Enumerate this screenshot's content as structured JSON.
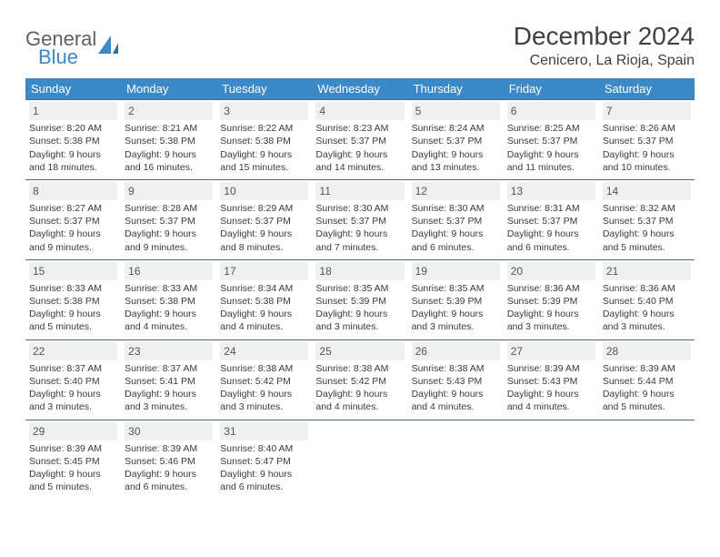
{
  "brand": {
    "line1": "General",
    "line2": "Blue"
  },
  "title": "December 2024",
  "location": "Cenicero, La Rioja, Spain",
  "dow": [
    "Sunday",
    "Monday",
    "Tuesday",
    "Wednesday",
    "Thursday",
    "Friday",
    "Saturday"
  ],
  "colors": {
    "header_bg": "#3b89c7",
    "header_text": "#ffffff",
    "week_border": "#3b6fa0",
    "daynum_bg": "#eef0f1",
    "text": "#404040",
    "brand_blue": "#3b89c7",
    "brand_gray": "#606060"
  },
  "label": {
    "sunrise": "Sunrise:",
    "sunset": "Sunset:",
    "daylight": "Daylight:"
  },
  "weeks": [
    [
      {
        "n": 1,
        "sr": "8:20 AM",
        "ss": "5:38 PM",
        "dl": "9 hours and 18 minutes."
      },
      {
        "n": 2,
        "sr": "8:21 AM",
        "ss": "5:38 PM",
        "dl": "9 hours and 16 minutes."
      },
      {
        "n": 3,
        "sr": "8:22 AM",
        "ss": "5:38 PM",
        "dl": "9 hours and 15 minutes."
      },
      {
        "n": 4,
        "sr": "8:23 AM",
        "ss": "5:37 PM",
        "dl": "9 hours and 14 minutes."
      },
      {
        "n": 5,
        "sr": "8:24 AM",
        "ss": "5:37 PM",
        "dl": "9 hours and 13 minutes."
      },
      {
        "n": 6,
        "sr": "8:25 AM",
        "ss": "5:37 PM",
        "dl": "9 hours and 11 minutes."
      },
      {
        "n": 7,
        "sr": "8:26 AM",
        "ss": "5:37 PM",
        "dl": "9 hours and 10 minutes."
      }
    ],
    [
      {
        "n": 8,
        "sr": "8:27 AM",
        "ss": "5:37 PM",
        "dl": "9 hours and 9 minutes."
      },
      {
        "n": 9,
        "sr": "8:28 AM",
        "ss": "5:37 PM",
        "dl": "9 hours and 9 minutes."
      },
      {
        "n": 10,
        "sr": "8:29 AM",
        "ss": "5:37 PM",
        "dl": "9 hours and 8 minutes."
      },
      {
        "n": 11,
        "sr": "8:30 AM",
        "ss": "5:37 PM",
        "dl": "9 hours and 7 minutes."
      },
      {
        "n": 12,
        "sr": "8:30 AM",
        "ss": "5:37 PM",
        "dl": "9 hours and 6 minutes."
      },
      {
        "n": 13,
        "sr": "8:31 AM",
        "ss": "5:37 PM",
        "dl": "9 hours and 6 minutes."
      },
      {
        "n": 14,
        "sr": "8:32 AM",
        "ss": "5:37 PM",
        "dl": "9 hours and 5 minutes."
      }
    ],
    [
      {
        "n": 15,
        "sr": "8:33 AM",
        "ss": "5:38 PM",
        "dl": "9 hours and 5 minutes."
      },
      {
        "n": 16,
        "sr": "8:33 AM",
        "ss": "5:38 PM",
        "dl": "9 hours and 4 minutes."
      },
      {
        "n": 17,
        "sr": "8:34 AM",
        "ss": "5:38 PM",
        "dl": "9 hours and 4 minutes."
      },
      {
        "n": 18,
        "sr": "8:35 AM",
        "ss": "5:39 PM",
        "dl": "9 hours and 3 minutes."
      },
      {
        "n": 19,
        "sr": "8:35 AM",
        "ss": "5:39 PM",
        "dl": "9 hours and 3 minutes."
      },
      {
        "n": 20,
        "sr": "8:36 AM",
        "ss": "5:39 PM",
        "dl": "9 hours and 3 minutes."
      },
      {
        "n": 21,
        "sr": "8:36 AM",
        "ss": "5:40 PM",
        "dl": "9 hours and 3 minutes."
      }
    ],
    [
      {
        "n": 22,
        "sr": "8:37 AM",
        "ss": "5:40 PM",
        "dl": "9 hours and 3 minutes."
      },
      {
        "n": 23,
        "sr": "8:37 AM",
        "ss": "5:41 PM",
        "dl": "9 hours and 3 minutes."
      },
      {
        "n": 24,
        "sr": "8:38 AM",
        "ss": "5:42 PM",
        "dl": "9 hours and 3 minutes."
      },
      {
        "n": 25,
        "sr": "8:38 AM",
        "ss": "5:42 PM",
        "dl": "9 hours and 4 minutes."
      },
      {
        "n": 26,
        "sr": "8:38 AM",
        "ss": "5:43 PM",
        "dl": "9 hours and 4 minutes."
      },
      {
        "n": 27,
        "sr": "8:39 AM",
        "ss": "5:43 PM",
        "dl": "9 hours and 4 minutes."
      },
      {
        "n": 28,
        "sr": "8:39 AM",
        "ss": "5:44 PM",
        "dl": "9 hours and 5 minutes."
      }
    ],
    [
      {
        "n": 29,
        "sr": "8:39 AM",
        "ss": "5:45 PM",
        "dl": "9 hours and 5 minutes."
      },
      {
        "n": 30,
        "sr": "8:39 AM",
        "ss": "5:46 PM",
        "dl": "9 hours and 6 minutes."
      },
      {
        "n": 31,
        "sr": "8:40 AM",
        "ss": "5:47 PM",
        "dl": "9 hours and 6 minutes."
      },
      null,
      null,
      null,
      null
    ]
  ]
}
